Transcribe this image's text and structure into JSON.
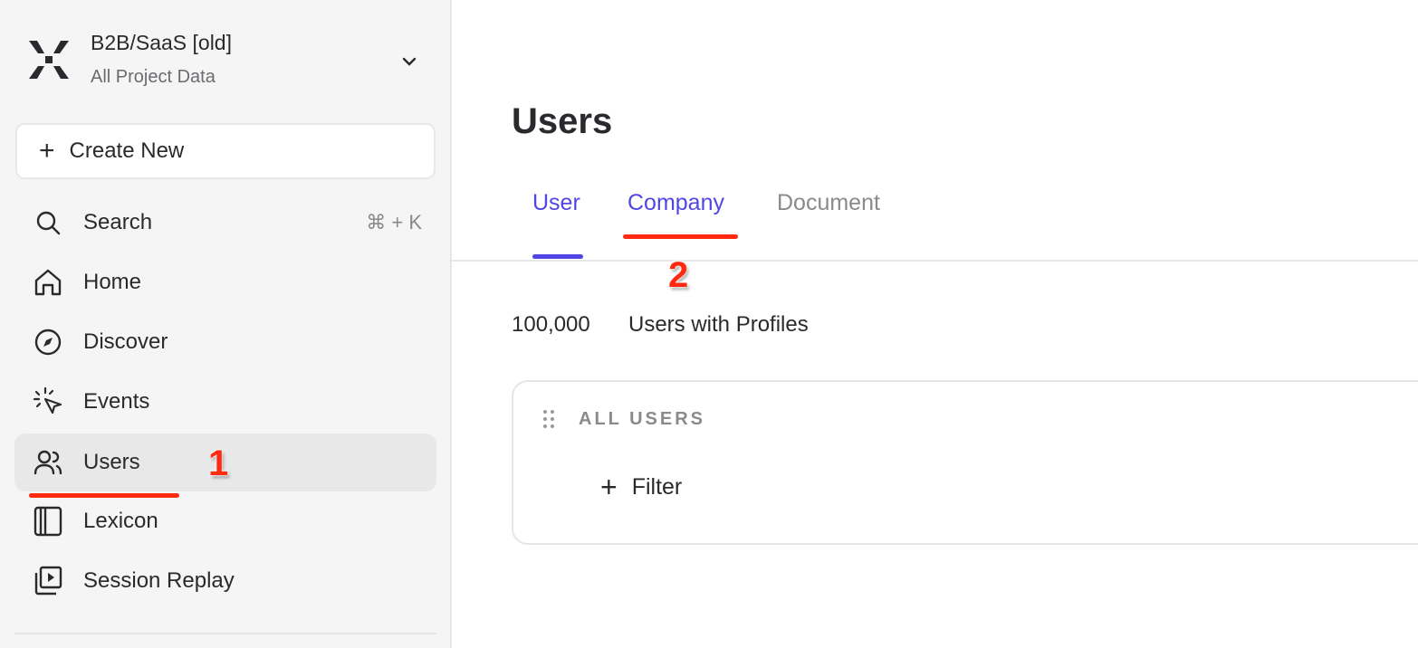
{
  "colors": {
    "accent": "#5046e5",
    "annotation": "#ff2a10",
    "sidebar_bg": "#f5f5f5"
  },
  "project": {
    "name": "B2B/SaaS [old]",
    "subtitle": "All Project Data",
    "logo_icon": "mixpanel-x-logo"
  },
  "sidebar": {
    "create_label": "Create New",
    "items": [
      {
        "label": "Search",
        "icon": "search-icon",
        "shortcut": "⌘ + K"
      },
      {
        "label": "Home",
        "icon": "home-icon"
      },
      {
        "label": "Discover",
        "icon": "compass-icon"
      },
      {
        "label": "Events",
        "icon": "cursor-click-icon"
      },
      {
        "label": "Users",
        "icon": "users-icon",
        "active": true
      },
      {
        "label": "Lexicon",
        "icon": "book-icon"
      },
      {
        "label": "Session Replay",
        "icon": "replay-icon"
      }
    ]
  },
  "main": {
    "title": "Users",
    "tabs": [
      {
        "label": "User",
        "active": true
      },
      {
        "label": "Company"
      },
      {
        "label": "Document"
      }
    ],
    "count": "100,000",
    "count_label": "Users with Profiles",
    "card": {
      "header": "ALL USERS",
      "filter_label": "Filter"
    }
  },
  "annotations": {
    "step1": "1",
    "step2": "2"
  }
}
